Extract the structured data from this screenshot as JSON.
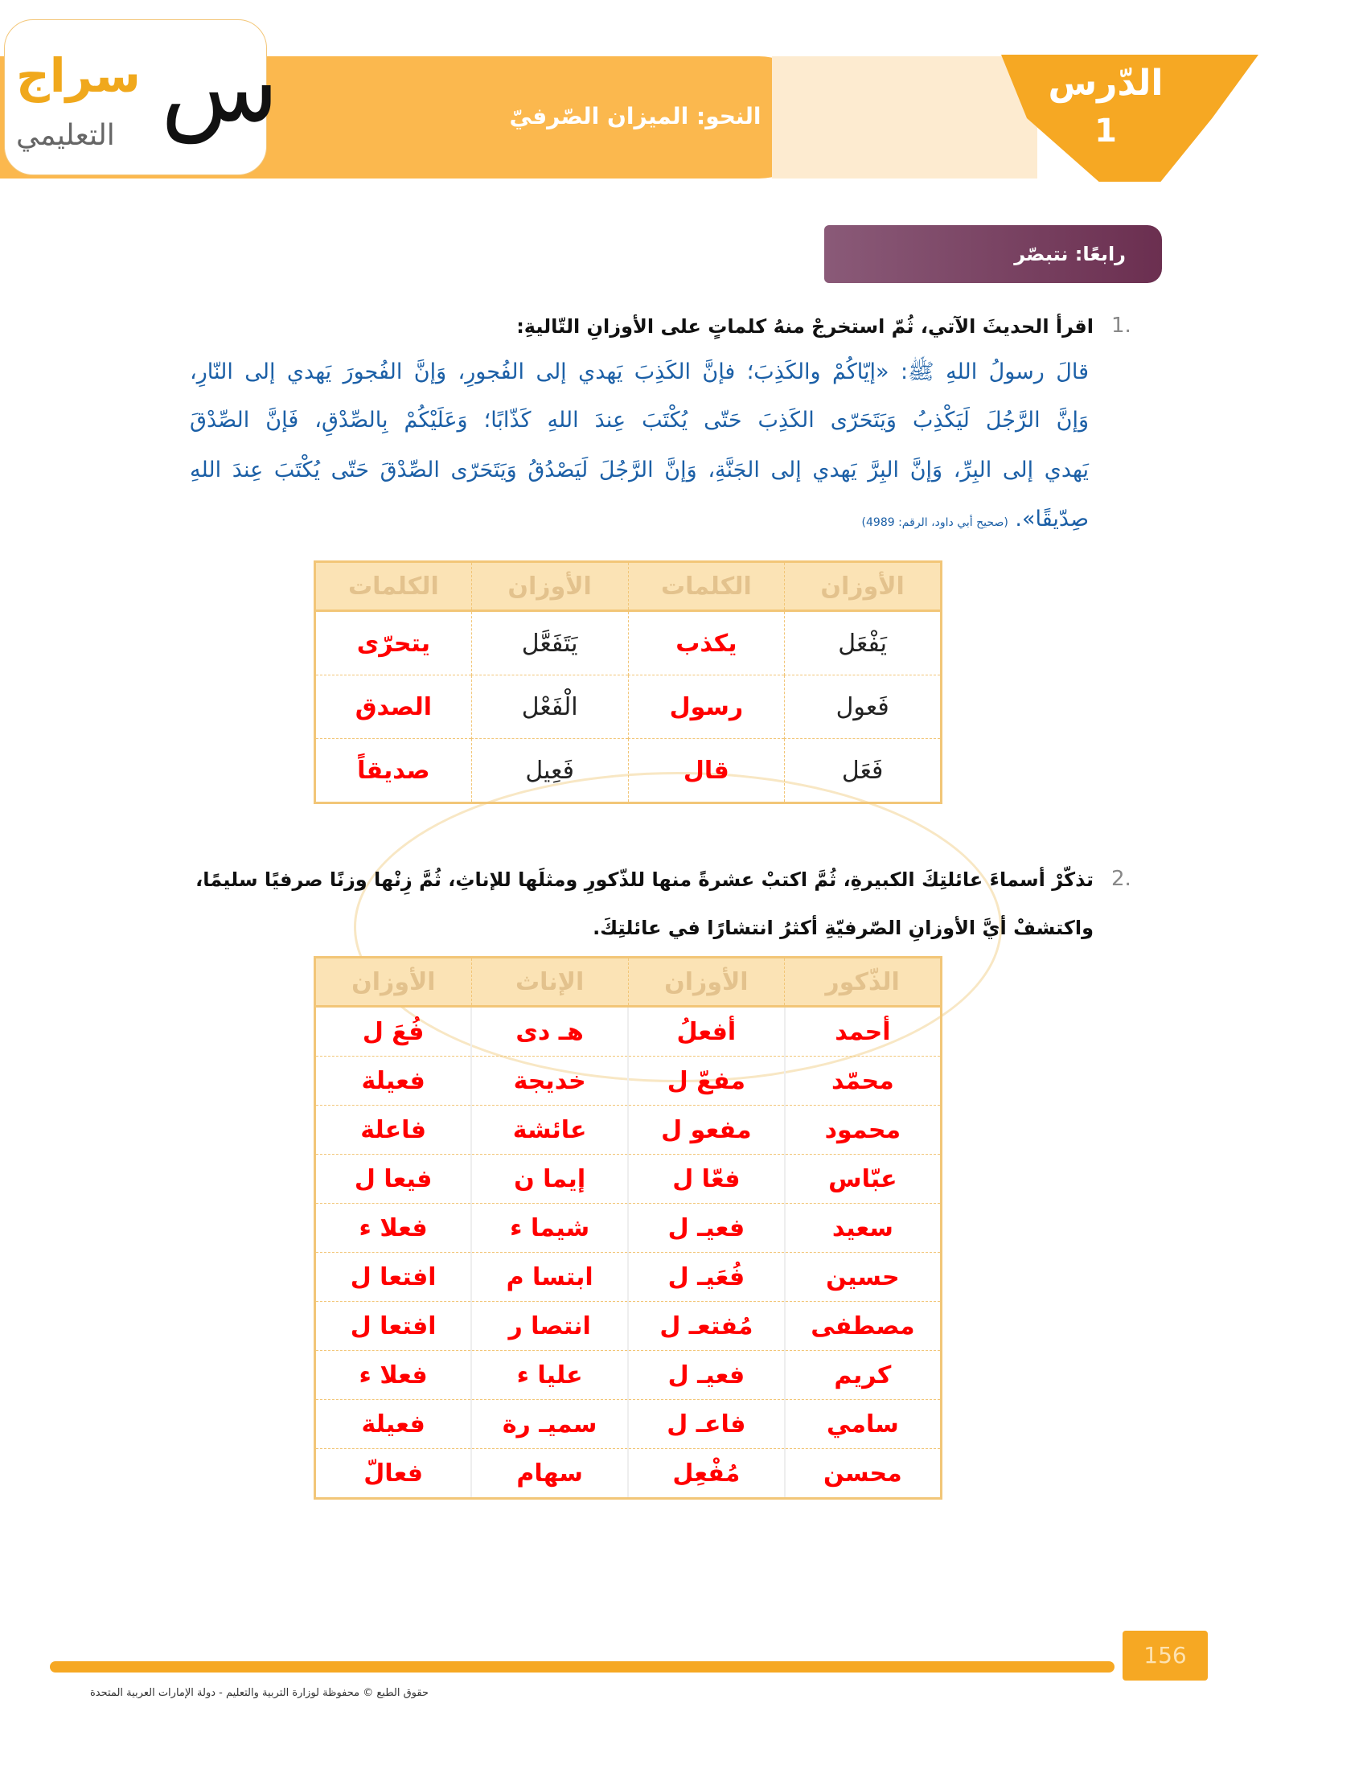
{
  "header": {
    "lesson_label": "الدّرس",
    "lesson_number": "1",
    "title": "النحو: الميزان الصّرفيّ",
    "logo": {
      "name": "سراج",
      "subtitle": "التعليمي",
      "mark": "س"
    }
  },
  "section_tab": "رابعًا: نتبصّر",
  "q1": {
    "number": "1.",
    "prompt": "اقرأ الحديثَ الآتي، ثُمّ استخرجْ منهُ كلماتٍ على الأوزانِ التّاليةِ:",
    "hadith": [
      "قالَ رسولُ اللهِ ﷺ: «إيّاكُمْ والكَذِبَ؛ فإنَّ الكَذِبَ يَهدي إلى الفُجورِ، وَإنَّ الفُجورَ يَهدي إلى النّارِ،",
      "وَإنَّ الرَّجُلَ لَيَكْذِبُ وَيَتَحَرّى الكَذِبَ حَتّى يُكْتَبَ عِندَ اللهِ كَذّابًا؛ وَعَلَيْكُمْ بِالصِّدْقِ، فَإنَّ الصِّدْقَ",
      "يَهدي إلى البِرِّ، وَإنَّ البِرَّ يَهدي إلى الجَنَّةِ، وَإنَّ الرَّجُلَ لَيَصْدُقُ وَيَتَحَرّى الصِّدْقَ حَتّى يُكْتَبَ عِندَ اللهِ",
      "صِدّيقًا»."
    ],
    "source": "(صحيح أبي داود، الرقم: 4989)",
    "table": {
      "headers": [
        "الأوزان",
        "الكلمات",
        "الأوزان",
        "الكلمات"
      ],
      "rows": [
        [
          "يَفْعَل",
          "يكذب",
          "يَتَفَعَّل",
          "يتحرّى"
        ],
        [
          "فَعول",
          "رسول",
          "الْفَعْل",
          "الصدق"
        ],
        [
          "فَعَل",
          "قال",
          "فَعِيل",
          "صديقاً"
        ]
      ]
    }
  },
  "q2": {
    "number": "2.",
    "prompt_lines": [
      "تذكّرْ أسماءَ عائلتِكَ الكبيرةِ، ثُمَّ اكتبْ عشرةً منها للذّكورِ ومثلَها للإناثِ، ثُمَّ زِنْها وزنًا صرفيًا سليمًا،",
      "واكتشفْ أيَّ الأوزانِ الصّرفيّةِ أكثرُ انتشارًا في عائلتِكَ."
    ],
    "table": {
      "headers": [
        "الذّكور",
        "الأوزان",
        "الإناث",
        "الأوزان"
      ],
      "rows": [
        [
          "أحمد",
          "أفعلُ",
          "هـ دى",
          "فُعَ ل"
        ],
        [
          "محمّد",
          "مفعّ ل",
          "خديجة",
          "فعيلة"
        ],
        [
          "محمود",
          "مفعو ل",
          "عائشة",
          "فاعلة"
        ],
        [
          "عبّاس",
          "فعّا ل",
          "إيما ن",
          "فيعا ل"
        ],
        [
          "سعيد",
          "فعيـ ل",
          "شيما ء",
          "فعلا ء"
        ],
        [
          "حسين",
          "فُعَيـ ل",
          "ابتسا م",
          "افتعا ل"
        ],
        [
          "مصطفى",
          "مُفتعـ ل",
          "انتصا ر",
          "افتعا ل"
        ],
        [
          "كريم",
          "فعيـ ل",
          "عليا ء",
          "فعلا ء"
        ],
        [
          "سامي",
          "فاعـ ل",
          "سميـ رة",
          "فعيلة"
        ],
        [
          "محسن",
          "مُفْعِل",
          "سهام",
          "فعالّ"
        ]
      ]
    }
  },
  "footer": {
    "page_number": "156",
    "copyright": "حقوق الطبع © محفوظة لوزارة التربية والتعليم - دولة الإمارات العربية المتحدة"
  },
  "colors": {
    "accent": "#f6a823",
    "tab": "#6b2f50",
    "hadith": "#1b5fa6",
    "answers": "#ff0000"
  }
}
